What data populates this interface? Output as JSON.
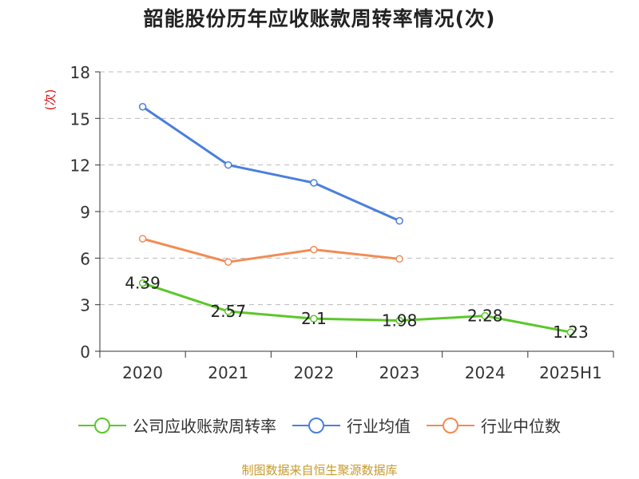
{
  "chart_data": {
    "type": "line",
    "title": "韶能股份历年应收账款周转率情况(次)",
    "ylabel": "(次)",
    "xlabel": "",
    "categories": [
      "2020",
      "2021",
      "2022",
      "2023",
      "2024",
      "2025H1"
    ],
    "yticks": [
      "0",
      "3",
      "6",
      "9",
      "12",
      "15",
      "18"
    ],
    "ylim": [
      0,
      18
    ],
    "grid": true,
    "legend_position": "bottom",
    "series": [
      {
        "name": "公司应收账款周转率",
        "color": "#5cc72b",
        "values": [
          4.39,
          2.57,
          2.1,
          1.98,
          2.28,
          1.23
        ],
        "labels": [
          "4.39",
          "2.57",
          "2.1",
          "1.98",
          "2.28",
          "1.23"
        ]
      },
      {
        "name": "行业均值",
        "color": "#4a7fdc",
        "values": [
          15.75,
          12.0,
          10.85,
          8.4,
          null,
          null
        ]
      },
      {
        "name": "行业中位数",
        "color": "#f28b54",
        "values": [
          7.25,
          5.75,
          6.55,
          5.95,
          null,
          null
        ]
      }
    ]
  },
  "source": "制图数据来自恒生聚源数据库"
}
